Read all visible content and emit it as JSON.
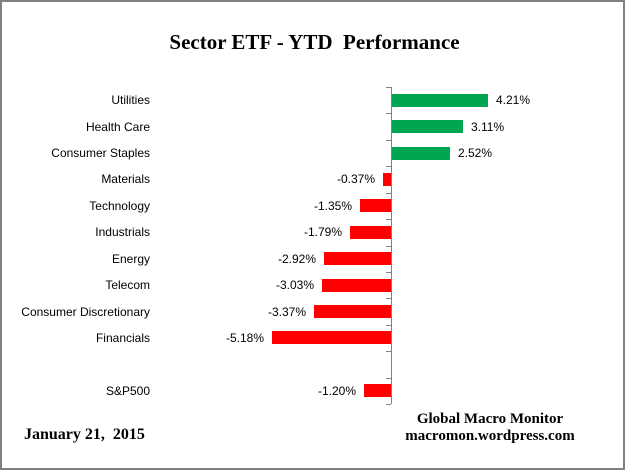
{
  "chart_data": {
    "type": "bar",
    "orientation": "horizontal",
    "title": "Sector ETF - YTD  Performance",
    "categories": [
      "Utilities",
      "Health Care",
      "Consumer Staples",
      "Materials",
      "Technology",
      "Industrials",
      "Energy",
      "Telecom",
      "Consumer Discretionary",
      "Financials",
      "S&P500"
    ],
    "values": [
      4.21,
      3.11,
      2.52,
      -0.37,
      -1.35,
      -1.79,
      -2.92,
      -3.03,
      -3.37,
      -5.18,
      -1.2
    ],
    "value_labels": [
      "4.21%",
      "3.11%",
      "2.52%",
      "-0.37%",
      "-1.35%",
      "-1.79%",
      "-2.92%",
      "-3.03%",
      "-3.37%",
      "-5.18%",
      "-1.20%"
    ],
    "gap_before_index": 10,
    "data_label_position": "outside-end",
    "gridlines": false,
    "legend": "none",
    "axis_tick_labels": "none",
    "positive_color": "#00A651",
    "negative_color": "#FF0000",
    "axis_color": "#808080"
  },
  "footer": {
    "date": "January 21,  2015",
    "brand_line1": "Global Macro Monitor",
    "brand_line2": "macromon.wordpress.com"
  }
}
